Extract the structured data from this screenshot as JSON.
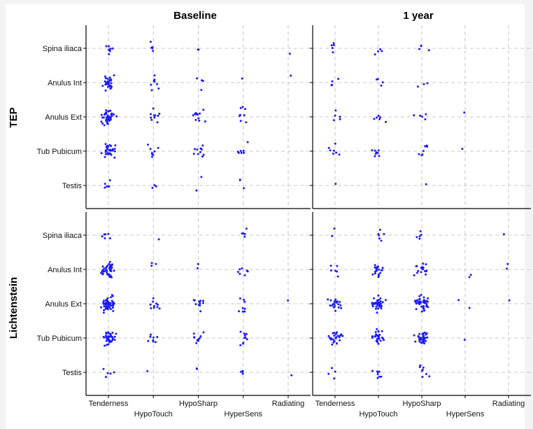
{
  "chart_data": {
    "type": "scatter",
    "style": "jittered categorical strip plot, facet grid",
    "columns": [
      "Baseline",
      "1 year"
    ],
    "rows": [
      "TEP",
      "Lichtenstein"
    ],
    "x_categories": [
      "Tenderness",
      "HypoTouch",
      "HypoSharp",
      "HyperSens",
      "Radiating"
    ],
    "y_categories": [
      "Spina iliaca",
      "Anulus Int",
      "Anulus Ext",
      "Tub Pubicum",
      "Testis"
    ],
    "grid": true,
    "point_color": "#1a1aff",
    "panels": [
      {
        "row": "TEP",
        "column": "Baseline",
        "counts": [
          [
            8,
            5,
            2,
            0,
            1
          ],
          [
            30,
            8,
            4,
            1,
            1
          ],
          [
            45,
            10,
            12,
            8,
            0
          ],
          [
            35,
            8,
            10,
            7,
            0
          ],
          [
            6,
            3,
            2,
            3,
            0
          ]
        ]
      },
      {
        "row": "TEP",
        "column": "1 year",
        "counts": [
          [
            5,
            4,
            4,
            0,
            0
          ],
          [
            4,
            4,
            3,
            0,
            0
          ],
          [
            5,
            6,
            5,
            1,
            0
          ],
          [
            7,
            8,
            7,
            1,
            0
          ],
          [
            1,
            0,
            1,
            0,
            0
          ]
        ]
      },
      {
        "row": "Lichtenstein",
        "column": "Baseline",
        "counts": [
          [
            6,
            1,
            0,
            5,
            0
          ],
          [
            45,
            3,
            2,
            8,
            0
          ],
          [
            60,
            10,
            12,
            8,
            1
          ],
          [
            40,
            8,
            10,
            10,
            0
          ],
          [
            5,
            1,
            2,
            4,
            1
          ]
        ]
      },
      {
        "row": "Lichtenstein",
        "column": "1 year",
        "counts": [
          [
            2,
            6,
            5,
            0,
            1
          ],
          [
            6,
            20,
            18,
            2,
            2
          ],
          [
            20,
            40,
            45,
            2,
            1
          ],
          [
            25,
            30,
            35,
            1,
            0
          ],
          [
            4,
            8,
            8,
            0,
            0
          ]
        ]
      }
    ]
  }
}
